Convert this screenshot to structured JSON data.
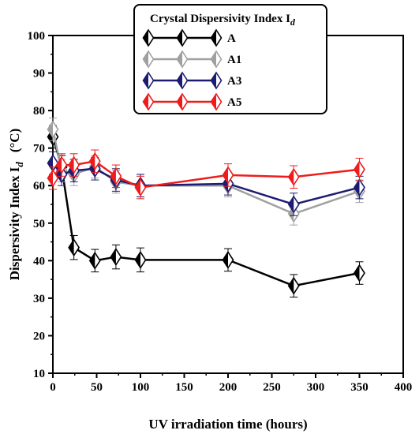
{
  "chart_data": {
    "type": "line",
    "xlabel": "UV irradiation time  (hours)",
    "ylabel_main": "Dispersivity Index I",
    "ylabel_sub": "d",
    "ylabel_unit": "(°C)",
    "xlim": [
      0,
      400
    ],
    "ylim": [
      10,
      100
    ],
    "xticks": [
      0,
      50,
      100,
      150,
      200,
      250,
      300,
      350,
      400
    ],
    "yticks": [
      10,
      20,
      30,
      40,
      50,
      60,
      70,
      80,
      90,
      100
    ],
    "grid": false,
    "legend": {
      "title_main": "Crystal Dispersivity Index I",
      "title_sub": "d",
      "placement": "top-center"
    },
    "series": [
      {
        "name": "A",
        "color": "#000000",
        "x": [
          0,
          10,
          24,
          48,
          72,
          100,
          200,
          275,
          350
        ],
        "y": [
          73,
          65,
          43.5,
          40,
          41,
          40.2,
          40.2,
          33.3,
          36.7
        ],
        "err": [
          3,
          3,
          3.2,
          3,
          3.2,
          3.2,
          3,
          3,
          3
        ]
      },
      {
        "name": "A1",
        "color": "#a0a0a0",
        "x": [
          0,
          10,
          24,
          48,
          72,
          100,
          200,
          275,
          350
        ],
        "y": [
          75,
          64,
          63,
          65,
          61,
          60,
          60,
          52.5,
          58.5
        ],
        "err": [
          3,
          3,
          3,
          3,
          3,
          3,
          3,
          3,
          3
        ]
      },
      {
        "name": "A3",
        "color": "#1c1c73",
        "x": [
          0,
          10,
          24,
          48,
          72,
          100,
          200,
          275,
          350
        ],
        "y": [
          66,
          63,
          64,
          64.5,
          61.5,
          60,
          60.5,
          55,
          59.5
        ],
        "err": [
          3,
          3,
          3,
          3,
          3,
          3,
          3,
          3,
          3
        ]
      },
      {
        "name": "A5",
        "color": "#ee1c1c",
        "x": [
          0,
          10,
          24,
          48,
          72,
          100,
          200,
          275,
          350
        ],
        "y": [
          62,
          65.5,
          65.5,
          66.5,
          62.5,
          59.5,
          62.8,
          62.3,
          64.3
        ],
        "err": [
          3,
          3,
          3,
          3,
          3,
          3,
          3,
          3,
          3
        ]
      }
    ]
  }
}
